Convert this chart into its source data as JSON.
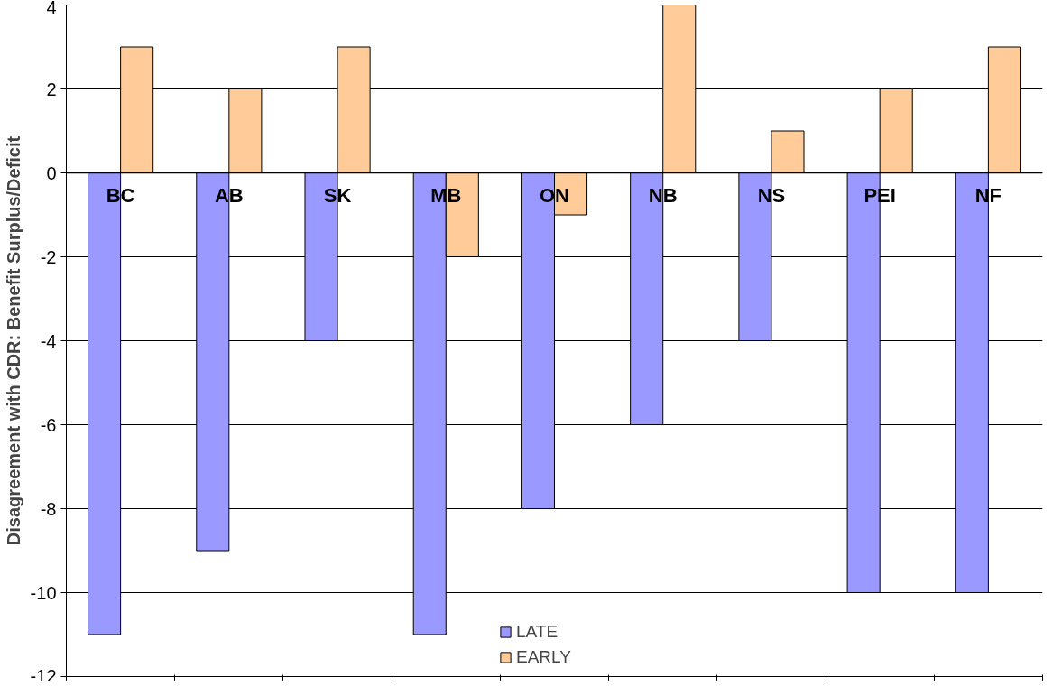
{
  "chart_data": {
    "type": "bar",
    "ylabel": "Disagreement with CDR: Benefit Surplus/Deficit",
    "categories": [
      "BC",
      "AB",
      "SK",
      "MB",
      "ON",
      "NB",
      "NS",
      "PEI",
      "NF"
    ],
    "series": [
      {
        "name": "LATE",
        "color": "#9999ff",
        "values": [
          -11,
          -9,
          -4,
          -11,
          -8,
          -6,
          -4,
          -10,
          -10
        ]
      },
      {
        "name": "EARLY",
        "color": "#ffcc99",
        "values": [
          3,
          2,
          3,
          -2,
          -1,
          4,
          1,
          2,
          3
        ]
      }
    ],
    "ylim": [
      -12,
      4
    ],
    "yticks": [
      -12,
      -10,
      -8,
      -6,
      -4,
      -2,
      0,
      2,
      4
    ],
    "grid": "y",
    "legend": "bottom"
  }
}
